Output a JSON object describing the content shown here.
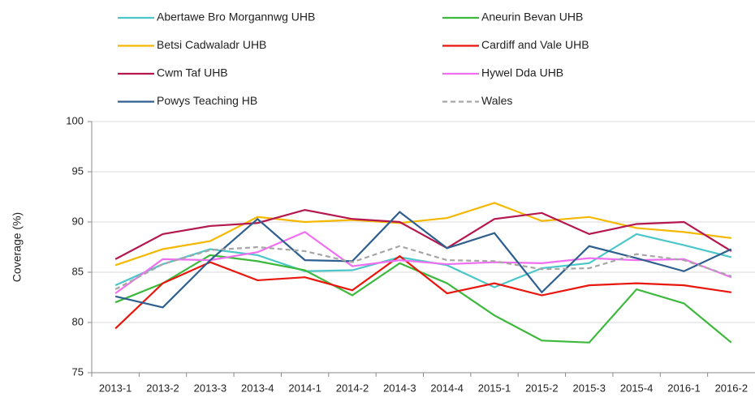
{
  "chart_data": {
    "type": "line",
    "y_label": "Coverage (%)",
    "categories": [
      "2013-1",
      "2013-2",
      "2013-3",
      "2013-4",
      "2014-1",
      "2014-2",
      "2014-3",
      "2014-4",
      "2015-1",
      "2015-2",
      "2015-3",
      "2015-4",
      "2016-1",
      "2016-2"
    ],
    "ylim": [
      75,
      100
    ],
    "yticks": [
      75,
      80,
      85,
      90,
      95,
      100
    ],
    "grid": true,
    "series": [
      {
        "name": "Abertawe Bro Morgannwg UHB",
        "color": "#4bc6c9",
        "values": [
          83.7,
          85.8,
          87.3,
          86.7,
          85.1,
          85.2,
          86.5,
          85.7,
          83.5,
          85.4,
          85.9,
          88.8,
          87.7,
          86.5
        ]
      },
      {
        "name": "Aneurin Bevan UHB",
        "color": "#3cb93c",
        "values": [
          82.0,
          83.9,
          86.7,
          86.1,
          85.2,
          82.7,
          85.9,
          83.9,
          80.7,
          78.2,
          78.0,
          83.3,
          81.9,
          78.0
        ]
      },
      {
        "name": "Betsi Cadwaladr UHB",
        "color": "#f5b800",
        "values": [
          85.7,
          87.3,
          88.1,
          90.5,
          90.0,
          90.2,
          89.9,
          90.4,
          91.9,
          90.1,
          90.5,
          89.4,
          89.0,
          88.4
        ]
      },
      {
        "name": "Cardiff and Vale UHB",
        "color": "#e8160c",
        "values": [
          79.4,
          83.9,
          86.0,
          84.2,
          84.5,
          83.2,
          86.6,
          82.9,
          83.9,
          82.7,
          83.7,
          83.9,
          83.7,
          83.0
        ]
      },
      {
        "name": "Cwm Taf UHB",
        "color": "#b5174f",
        "values": [
          86.3,
          88.8,
          89.6,
          89.9,
          91.2,
          90.3,
          90.0,
          87.4,
          90.3,
          90.9,
          88.8,
          89.8,
          90.0,
          87.1
        ]
      },
      {
        "name": "Hywel Dda UHB",
        "color": "#f06ff0",
        "values": [
          82.9,
          86.3,
          86.2,
          87.0,
          89.0,
          85.6,
          86.2,
          85.8,
          86.0,
          85.9,
          86.4,
          86.2,
          86.3,
          84.5
        ]
      },
      {
        "name": "Powys Teaching HB",
        "color": "#2f5f8f",
        "values": [
          82.6,
          81.5,
          86.2,
          90.3,
          86.2,
          86.1,
          91.0,
          87.4,
          88.9,
          83.0,
          87.6,
          86.4,
          85.1,
          87.3
        ]
      },
      {
        "name": "Wales",
        "color": "#a6a6a6",
        "dashed": true,
        "values": [
          83.3,
          85.8,
          87.2,
          87.5,
          87.1,
          86.0,
          87.6,
          86.2,
          86.1,
          85.3,
          85.4,
          86.8,
          86.2,
          84.6
        ]
      }
    ]
  }
}
